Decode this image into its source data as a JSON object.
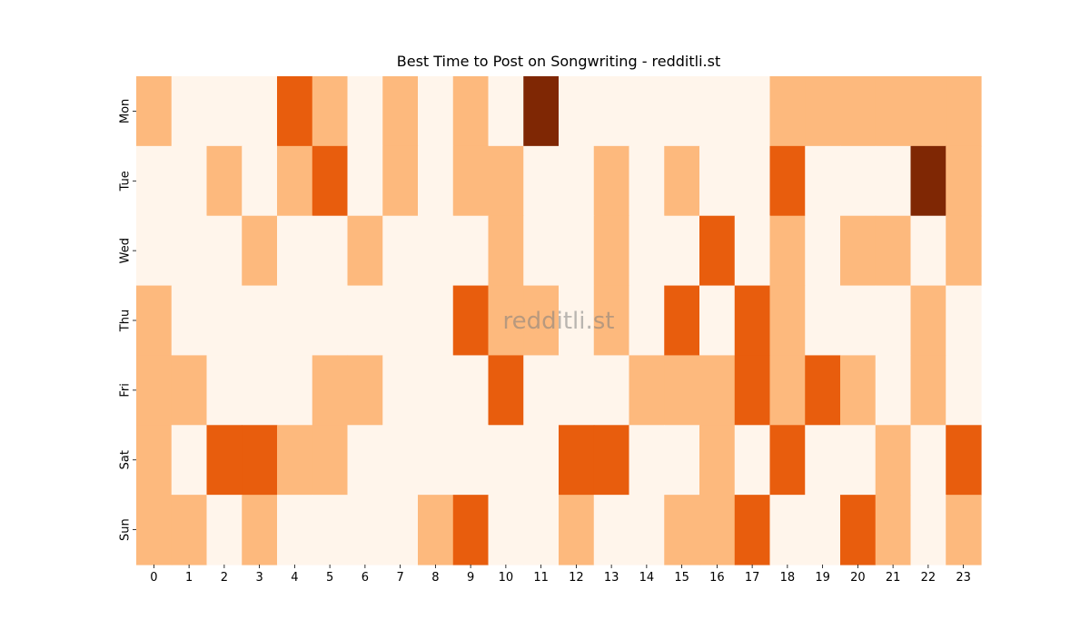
{
  "chart_data": {
    "type": "heatmap",
    "title": "Best Time to Post on Songwriting - redditli.st",
    "watermark": "redditli.st",
    "xlabel": "",
    "ylabel": "",
    "x_categories": [
      "0",
      "1",
      "2",
      "3",
      "4",
      "5",
      "6",
      "7",
      "8",
      "9",
      "10",
      "11",
      "12",
      "13",
      "14",
      "15",
      "16",
      "17",
      "18",
      "19",
      "20",
      "21",
      "22",
      "23"
    ],
    "y_categories": [
      "Mon",
      "Tue",
      "Wed",
      "Thu",
      "Fri",
      "Sat",
      "Sun"
    ],
    "levels": [
      0,
      1,
      2,
      3
    ],
    "colorscale": [
      "#fff5eb",
      "#fdb97d",
      "#e85d0d",
      "#7f2704"
    ],
    "values": [
      [
        1,
        0,
        0,
        0,
        2,
        1,
        0,
        1,
        0,
        1,
        0,
        3,
        0,
        0,
        0,
        0,
        0,
        0,
        1,
        1,
        1,
        1,
        1,
        1
      ],
      [
        0,
        0,
        1,
        0,
        1,
        2,
        0,
        1,
        0,
        1,
        1,
        0,
        0,
        1,
        0,
        1,
        0,
        0,
        2,
        0,
        0,
        0,
        3,
        1
      ],
      [
        0,
        0,
        0,
        1,
        0,
        0,
        1,
        0,
        0,
        0,
        1,
        0,
        0,
        1,
        0,
        0,
        2,
        0,
        1,
        0,
        1,
        1,
        0,
        1
      ],
      [
        1,
        0,
        0,
        0,
        0,
        0,
        0,
        0,
        0,
        2,
        1,
        1,
        0,
        1,
        0,
        2,
        0,
        2,
        1,
        0,
        0,
        0,
        1,
        0
      ],
      [
        1,
        1,
        0,
        0,
        0,
        1,
        1,
        0,
        0,
        0,
        2,
        0,
        0,
        0,
        1,
        1,
        1,
        2,
        1,
        2,
        1,
        0,
        1,
        0
      ],
      [
        1,
        0,
        2,
        2,
        1,
        1,
        0,
        0,
        0,
        0,
        0,
        0,
        2,
        2,
        0,
        0,
        1,
        0,
        2,
        0,
        0,
        1,
        0,
        2
      ],
      [
        1,
        1,
        0,
        1,
        0,
        0,
        0,
        0,
        1,
        2,
        0,
        0,
        1,
        0,
        0,
        1,
        1,
        2,
        0,
        0,
        2,
        1,
        0,
        1
      ]
    ],
    "colorbar": false,
    "grid": false
  }
}
